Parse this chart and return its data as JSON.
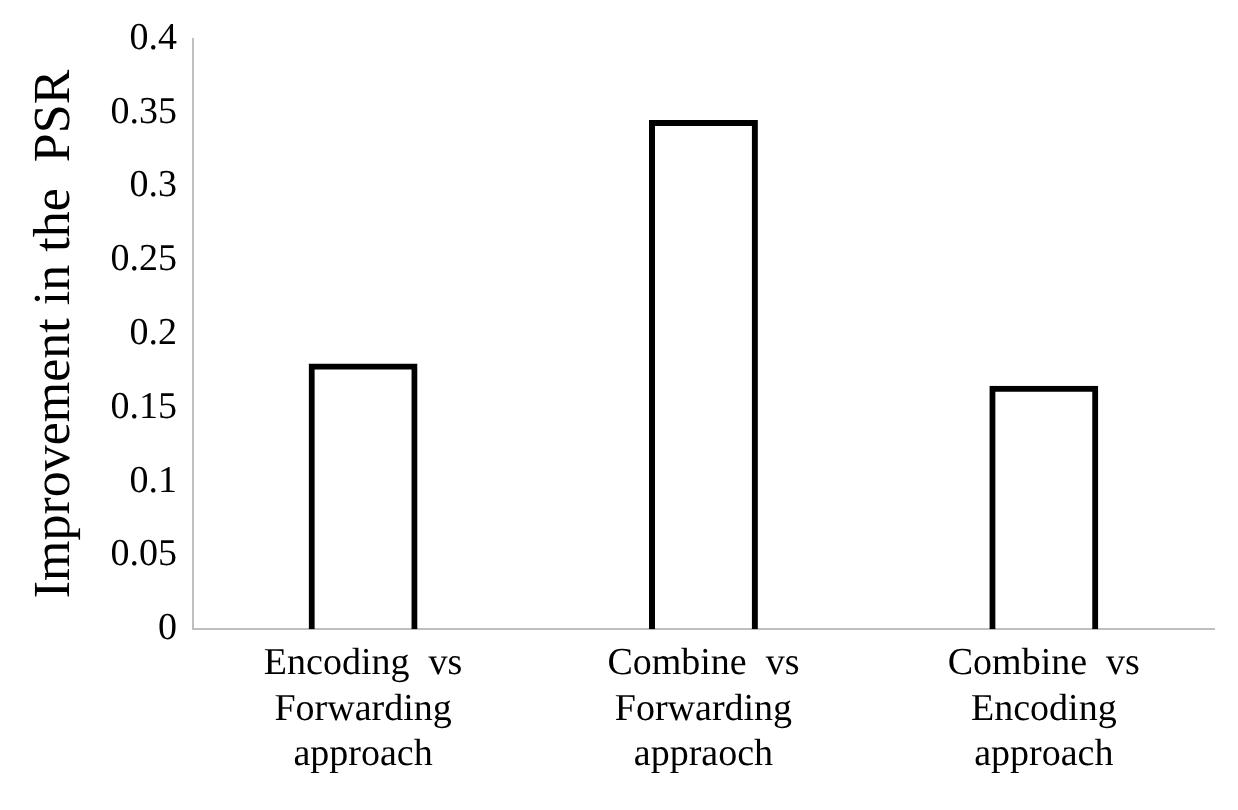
{
  "chart_data": {
    "type": "bar",
    "categories": [
      "Encoding  vs\nForwarding\napproach",
      "Combine  vs\nForwarding\nappraoch",
      "Combine  vs\nEncoding\napproach"
    ],
    "values": [
      0.18,
      0.345,
      0.165
    ],
    "colors": [
      "#000000",
      "#000000",
      "#000000"
    ],
    "ylabel": "Improvement in the  PSR",
    "ylim": [
      0,
      0.4
    ],
    "yticks": [
      0,
      0.05,
      0.1,
      0.15,
      0.2,
      0.25,
      0.3,
      0.35,
      0.4
    ],
    "grid": false,
    "legend": false
  }
}
